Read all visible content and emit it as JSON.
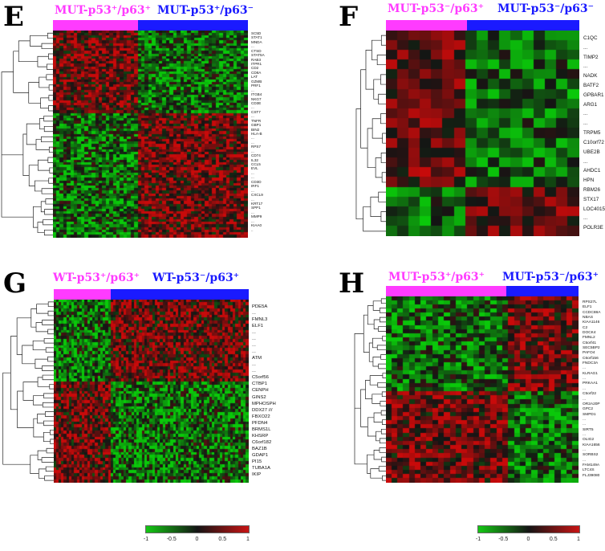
{
  "colors": {
    "magenta": "#ff3bff",
    "blue": "#1a1aff",
    "red": "#c81414",
    "black": "#141414",
    "green": "#14c814"
  },
  "panels": {
    "E": {
      "letter": "E",
      "group_a": "MUT-p53⁺/p63⁺",
      "group_b": "MUT-p53⁺/p63⁻",
      "genes": [
        "SC5D",
        "STAT1",
        "MNDA",
        "...",
        "CTSD",
        "STAT5A",
        "RAB3",
        "ITPR1",
        "CD2",
        "CD8A",
        "LAT",
        "GZMB",
        "PRF1",
        "...",
        "ITGB4",
        "NKG7",
        "CD3E",
        "...",
        "CST7",
        "...",
        "TNFR",
        "GBP1",
        "BIN2",
        "HLA-B",
        "...",
        "...",
        "RPS7",
        "...",
        "CD74",
        "IL32",
        "CCL5",
        "EVL",
        "...",
        "...",
        "CD3D",
        "IRF1",
        "...",
        "CXCL9",
        "...",
        "KRT17",
        "SPP1",
        "...",
        "MMP9",
        "...",
        "KIAA0",
        ".."
      ]
    },
    "F": {
      "letter": "F",
      "group_a": "MUT-p53⁻/p63⁺",
      "group_b": "MUT-p53⁻/p63⁻",
      "genes": [
        "C1QC",
        "...",
        "TIMP2",
        "...",
        "NADK",
        "BATF2",
        "GPBAR1",
        "ARG1",
        "...",
        "...",
        "TRPM5",
        "C10orf72",
        "UBE2B",
        "...",
        "AHDC1",
        "HPN",
        "RBM26",
        "STX17",
        "LOC4015",
        "...",
        "POLR3E"
      ]
    },
    "G": {
      "letter": "G",
      "group_a": "WT-p53⁺/p63⁺",
      "group_b": "WT-p53⁻/p63⁺",
      "genes": [
        "PDE5A",
        "...",
        "FMNL3",
        "ELF1",
        "...",
        "...",
        "...",
        "...",
        "ATM",
        "...",
        "...",
        "C5orf56",
        "CTBP1",
        "CENPH",
        "GINS2",
        "MPHOSPH",
        "DDX27 ///",
        "FBXO22",
        "PFDN4",
        "BRMS1L",
        "KHSRP",
        "C6orf182",
        "BAZ1B",
        "GDAP1",
        "PI15",
        "TUBA1A",
        "IKIP"
      ]
    },
    "H": {
      "letter": "H",
      "group_a": "MUT-p53⁺/p63⁺",
      "group_b": "MUT-p53⁻/p63⁺",
      "genes": [
        "RPS27L",
        "ELF1",
        "CCDC88A",
        "NBAS",
        "KIAA1146",
        "C2",
        "DOCK4",
        "FMNL2",
        "C5orf41",
        "SEC5BP2",
        "PAFO4",
        "C6orf156",
        "FNDC3A",
        "...",
        "KLRAG1",
        "...",
        "PRKAA1",
        "...",
        "C5orf22",
        "...",
        "OR2A20P",
        "GPC2",
        "SMPD1",
        "...",
        "...",
        "SIRT5",
        "...",
        "OLIG2",
        "KIAA1656",
        "...",
        "SORBS2",
        "...",
        "FAM149A",
        "LTC4S",
        "FLJ39080"
      ]
    }
  },
  "legend": {
    "ticks": [
      "-1",
      "-0.5",
      "0",
      "0.5",
      "1"
    ]
  }
}
